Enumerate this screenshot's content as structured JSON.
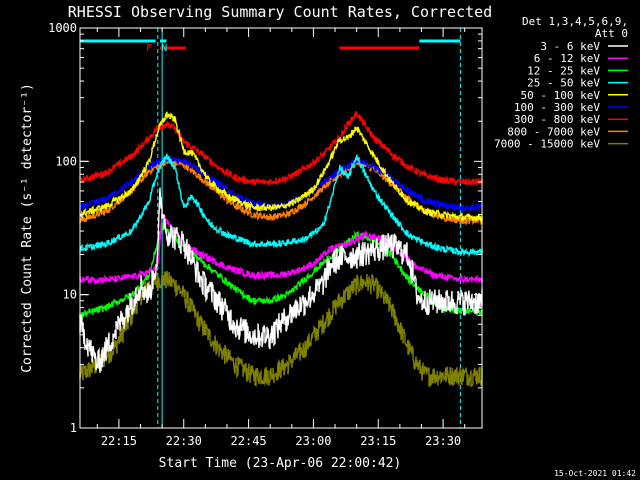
{
  "chart_data": {
    "type": "line",
    "title": "RHESSI Observing Summary Count Rates, Corrected",
    "xlabel": "Start Time (23-Apr-06 22:00:42)",
    "ylabel": "Corrected Count Rate (s⁻¹ detector⁻¹)",
    "xscale": "minutes after 22:00",
    "xlim": [
      6,
      99
    ],
    "ylim": [
      1,
      1000
    ],
    "yscale": "log",
    "x_ticks": [
      {
        "t": 15,
        "label": "22:15"
      },
      {
        "t": 30,
        "label": "22:30"
      },
      {
        "t": 45,
        "label": "22:45"
      },
      {
        "t": 60,
        "label": "23:00"
      },
      {
        "t": 75,
        "label": "23:15"
      },
      {
        "t": 90,
        "label": "23:30"
      }
    ],
    "y_ticks": [
      {
        "v": 1,
        "label": "1"
      },
      {
        "v": 10,
        "label": "10"
      },
      {
        "v": 100,
        "label": "100"
      },
      {
        "v": 1000,
        "label": "1000"
      }
    ],
    "legend_header": [
      "Det 1,3,4,5,6,9,",
      "Att 0"
    ],
    "legend_position": "right",
    "footer_date": "15-Oct-2021 01:42",
    "vlines": [
      6.0,
      24.0,
      25.0,
      94.0
    ],
    "cyan_bar_segments": [
      [
        6,
        23.5
      ],
      [
        24.5,
        26.0
      ],
      [
        84.5,
        94.0
      ]
    ],
    "red_bar_segments": [
      [
        24.5,
        30.5
      ],
      [
        66.0,
        84.5
      ]
    ],
    "flag_labels": [
      {
        "t": 22.0,
        "text": "F",
        "color": "#ff0000"
      },
      {
        "t": 25.5,
        "text": "N",
        "color": "#00ffff"
      }
    ],
    "series": [
      {
        "name": "3 - 6 keV",
        "color": "#ffffff",
        "x": [
          6,
          10,
          15,
          18,
          20,
          22,
          24,
          24.5,
          26,
          30,
          34,
          38,
          42,
          46,
          50,
          54,
          58,
          62,
          64,
          66,
          70,
          74,
          78,
          82,
          84,
          85
        ],
        "y": [
          6,
          3,
          6,
          9,
          12,
          10,
          20,
          55,
          30,
          25,
          13,
          9,
          6,
          5,
          5,
          7,
          9,
          12,
          17,
          19,
          20,
          22,
          24,
          20,
          10,
          9
        ]
      },
      {
        "name": "6 - 12 keV",
        "color": "#ff00ff",
        "x": [
          6,
          14,
          20,
          24,
          25,
          27,
          30,
          34,
          40,
          46,
          52,
          56,
          60,
          64,
          68,
          72,
          76,
          80,
          84,
          88,
          94,
          99
        ],
        "y": [
          13,
          13,
          14,
          16,
          40,
          32,
          24,
          20,
          16,
          14,
          14,
          15,
          17,
          22,
          24,
          28,
          26,
          21,
          16,
          14,
          13,
          13
        ]
      },
      {
        "name": "12 - 25 keV",
        "color": "#00ff00",
        "x": [
          6,
          12,
          18,
          22,
          24,
          25,
          27,
          30,
          34,
          38,
          42,
          46,
          50,
          54,
          58,
          62,
          66,
          70,
          74,
          78,
          82,
          86,
          90,
          94,
          99
        ],
        "y": [
          7,
          8,
          10,
          14,
          25,
          33,
          28,
          24,
          18,
          14,
          11,
          9,
          9,
          10,
          13,
          17,
          22,
          28,
          26,
          20,
          13,
          10,
          8,
          7.5,
          7.5
        ]
      },
      {
        "name": "25 - 50 keV",
        "color": "#00ffff",
        "x": [
          6,
          12,
          18,
          22,
          24,
          26,
          28,
          30,
          32,
          36,
          40,
          46,
          52,
          58,
          62,
          64,
          66,
          68,
          70,
          72,
          74,
          78,
          82,
          86,
          90,
          94,
          99
        ],
        "y": [
          22,
          24,
          30,
          50,
          85,
          110,
          90,
          45,
          55,
          34,
          28,
          24,
          24,
          26,
          32,
          50,
          90,
          75,
          110,
          80,
          60,
          40,
          28,
          24,
          22,
          21,
          21
        ]
      },
      {
        "name": "50 - 100 keV",
        "color": "#ffff00",
        "x": [
          6,
          12,
          18,
          22,
          24,
          26,
          28,
          30,
          32,
          36,
          40,
          46,
          52,
          56,
          60,
          63,
          66,
          68,
          70,
          72,
          74,
          78,
          82,
          86,
          90,
          94,
          99
        ],
        "y": [
          40,
          46,
          60,
          100,
          170,
          225,
          205,
          120,
          115,
          70,
          55,
          45,
          45,
          50,
          62,
          90,
          145,
          150,
          180,
          140,
          110,
          70,
          50,
          42,
          40,
          38,
          38
        ]
      },
      {
        "name": "100 - 300 keV",
        "color": "#0000ff",
        "x": [
          6,
          12,
          18,
          22,
          26,
          30,
          34,
          38,
          42,
          46,
          50,
          54,
          58,
          62,
          66,
          70,
          74,
          78,
          82,
          86,
          90,
          94,
          99
        ],
        "y": [
          45,
          52,
          70,
          92,
          105,
          100,
          85,
          68,
          55,
          48,
          46,
          48,
          55,
          68,
          85,
          100,
          92,
          75,
          60,
          50,
          47,
          45,
          45
        ]
      },
      {
        "name": "300 - 800 keV",
        "color": "#ff0000",
        "x": [
          6,
          12,
          18,
          22,
          24,
          26,
          28,
          30,
          34,
          38,
          42,
          46,
          50,
          54,
          58,
          62,
          66,
          68,
          70,
          72,
          74,
          78,
          82,
          86,
          90,
          94,
          99
        ],
        "y": [
          72,
          82,
          110,
          150,
          180,
          190,
          175,
          140,
          115,
          90,
          75,
          70,
          70,
          75,
          88,
          110,
          150,
          190,
          230,
          185,
          150,
          115,
          90,
          78,
          72,
          70,
          70
        ]
      },
      {
        "name": "800 - 7000 keV",
        "color": "#ff8000",
        "x": [
          6,
          12,
          18,
          22,
          26,
          30,
          34,
          38,
          42,
          46,
          50,
          54,
          58,
          62,
          66,
          70,
          74,
          78,
          82,
          86,
          90,
          94,
          99
        ],
        "y": [
          36,
          42,
          60,
          85,
          100,
          95,
          75,
          58,
          46,
          40,
          38,
          40,
          48,
          62,
          80,
          98,
          88,
          68,
          52,
          42,
          38,
          36,
          36
        ]
      },
      {
        "name": "7000 - 15000 keV",
        "color": "#808000",
        "x": [
          6,
          10,
          14,
          18,
          20,
          22,
          24,
          26,
          28,
          30,
          34,
          38,
          42,
          46,
          50,
          54,
          58,
          62,
          66,
          70,
          72,
          74,
          78,
          82,
          84,
          86,
          90,
          94,
          99
        ],
        "y": [
          2.5,
          3,
          4,
          7,
          10,
          12,
          13,
          13,
          12,
          10,
          6,
          4,
          3,
          2.5,
          2.5,
          3,
          4,
          6,
          9,
          12,
          12.5,
          12,
          8,
          4,
          3,
          2.5,
          2.5,
          2.5,
          2.5
        ]
      }
    ]
  }
}
